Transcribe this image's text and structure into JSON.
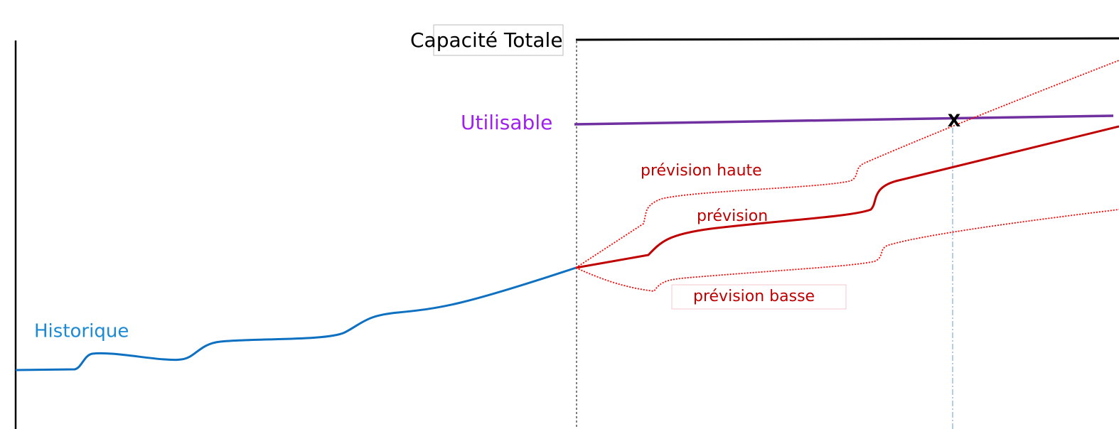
{
  "labels": {
    "capacity": "Capacité Totale",
    "usable": "Utilisable",
    "forecast_high": "prévision haute",
    "forecast": "prévision",
    "forecast_low": "prévision basse",
    "history": "Historique",
    "crossing": "X"
  }
}
